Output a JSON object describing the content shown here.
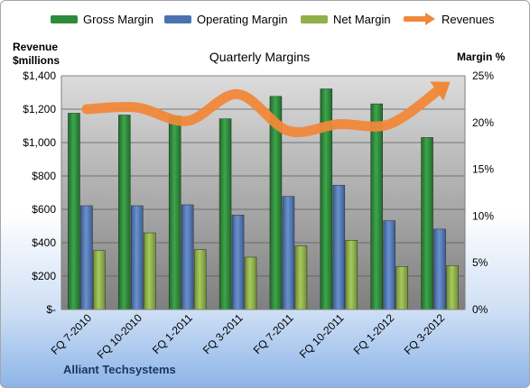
{
  "chart_data": {
    "type": "bar",
    "title": "Quarterly Margins",
    "left_axis_label_line1": "Revenue",
    "left_axis_label_line2": "$millions",
    "right_axis_label": "Margin %",
    "footer": "Alliant Techsystems",
    "categories": [
      "FQ 7-2010",
      "FQ 10-2010",
      "FQ 1-2011",
      "FQ 3-2011",
      "FQ 7-2011",
      "FQ 10-2011",
      "FQ 1-2012",
      "FQ 3-2012"
    ],
    "series": [
      {
        "name": "Gross Margin",
        "type": "bar",
        "axis": "right",
        "color": "#2e8b3a",
        "values": [
          21.0,
          20.8,
          20.7,
          20.4,
          22.8,
          23.6,
          22.0,
          18.4
        ]
      },
      {
        "name": "Operating Margin",
        "type": "bar",
        "axis": "right",
        "color": "#4a72b0",
        "values": [
          11.1,
          11.1,
          11.2,
          10.1,
          12.1,
          13.3,
          9.5,
          8.6
        ]
      },
      {
        "name": "Net Margin",
        "type": "bar",
        "axis": "right",
        "color": "#8fb04a",
        "values": [
          6.3,
          8.2,
          6.4,
          5.6,
          6.8,
          7.4,
          4.6,
          4.7
        ]
      },
      {
        "name": "Revenues",
        "type": "line",
        "axis": "left",
        "color": "#f0883a",
        "values": [
          1200,
          1210,
          1130,
          1290,
          1070,
          1110,
          1110,
          1320
        ]
      }
    ],
    "left_axis": {
      "min": 0,
      "max": 1400,
      "step": 200,
      "ticks": [
        "$-",
        "$200",
        "$400",
        "$600",
        "$800",
        "$1,000",
        "$1,200",
        "$1,400"
      ]
    },
    "right_axis": {
      "min": 0,
      "max": 25,
      "step": 5,
      "ticks": [
        "0%",
        "5%",
        "10%",
        "15%",
        "20%",
        "25%"
      ]
    },
    "grid": true,
    "legend_position": "top"
  }
}
